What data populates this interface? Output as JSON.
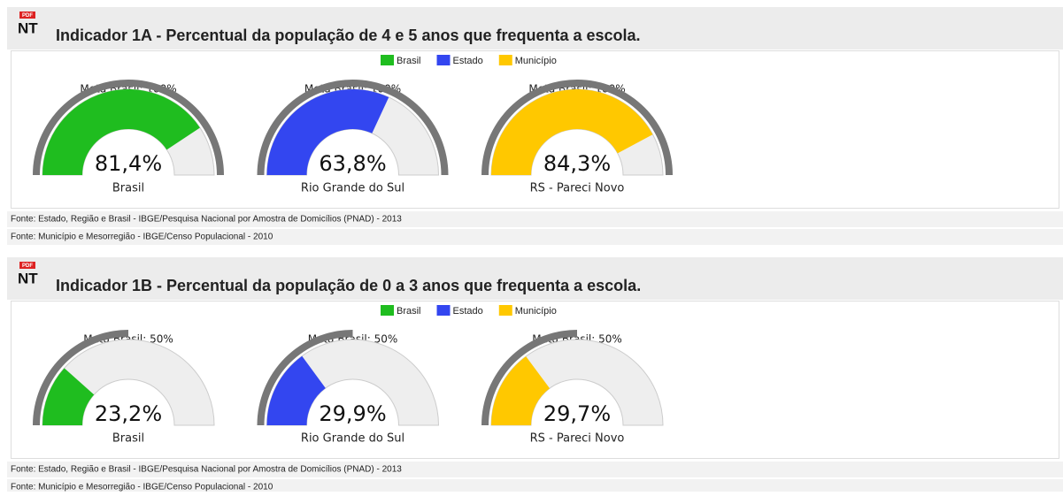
{
  "sections": [
    {
      "icon_badge": "PDF",
      "icon": "NT",
      "title": "Indicador 1A - Percentual da população de 4 e 5 anos que frequenta a escola.",
      "legend": [
        {
          "name": "Brasil",
          "color": "#1fbd1f"
        },
        {
          "name": "Estado",
          "color": "#3346f0"
        },
        {
          "name": "Município",
          "color": "#ffc800"
        }
      ],
      "range": [
        0,
        100
      ],
      "gauges": [
        {
          "meta_label": "Meta Brasil: 100%",
          "meta": 100,
          "value": 81.4,
          "value_label": "81,4%",
          "name": "Brasil"
        },
        {
          "meta_label": "Meta Brasil: 100%",
          "meta": 100,
          "value": 63.8,
          "value_label": "63,8%",
          "name": "Rio Grande do Sul"
        },
        {
          "meta_label": "Meta Brasil: 100%",
          "meta": 100,
          "value": 84.3,
          "value_label": "84,3%",
          "name": "RS - Pareci Novo"
        }
      ],
      "sources": [
        "Fonte: Estado, Região e Brasil - IBGE/Pesquisa Nacional por Amostra de Domicílios (PNAD) - 2013",
        "Fonte: Município e Mesorregião - IBGE/Censo Populacional - 2010"
      ]
    },
    {
      "icon_badge": "PDF",
      "icon": "NT",
      "title": "Indicador 1B - Percentual da população de 0 a 3 anos que frequenta a escola.",
      "legend": [
        {
          "name": "Brasil",
          "color": "#1fbd1f"
        },
        {
          "name": "Estado",
          "color": "#3346f0"
        },
        {
          "name": "Município",
          "color": "#ffc800"
        }
      ],
      "range": [
        0,
        100
      ],
      "gauges": [
        {
          "meta_label": "Meta Brasil: 50%",
          "meta": 50,
          "value": 23.2,
          "value_label": "23,2%",
          "name": "Brasil"
        },
        {
          "meta_label": "Meta Brasil: 50%",
          "meta": 50,
          "value": 29.9,
          "value_label": "29,9%",
          "name": "Rio Grande do Sul"
        },
        {
          "meta_label": "Meta Brasil: 50%",
          "meta": 50,
          "value": 29.7,
          "value_label": "29,7%",
          "name": "RS - Pareci Novo"
        }
      ],
      "sources": [
        "Fonte: Estado, Região e Brasil - IBGE/Pesquisa Nacional por Amostra de Domicílios (PNAD) - 2013",
        "Fonte: Município e Mesorregião - IBGE/Censo Populacional - 2010"
      ]
    }
  ]
}
